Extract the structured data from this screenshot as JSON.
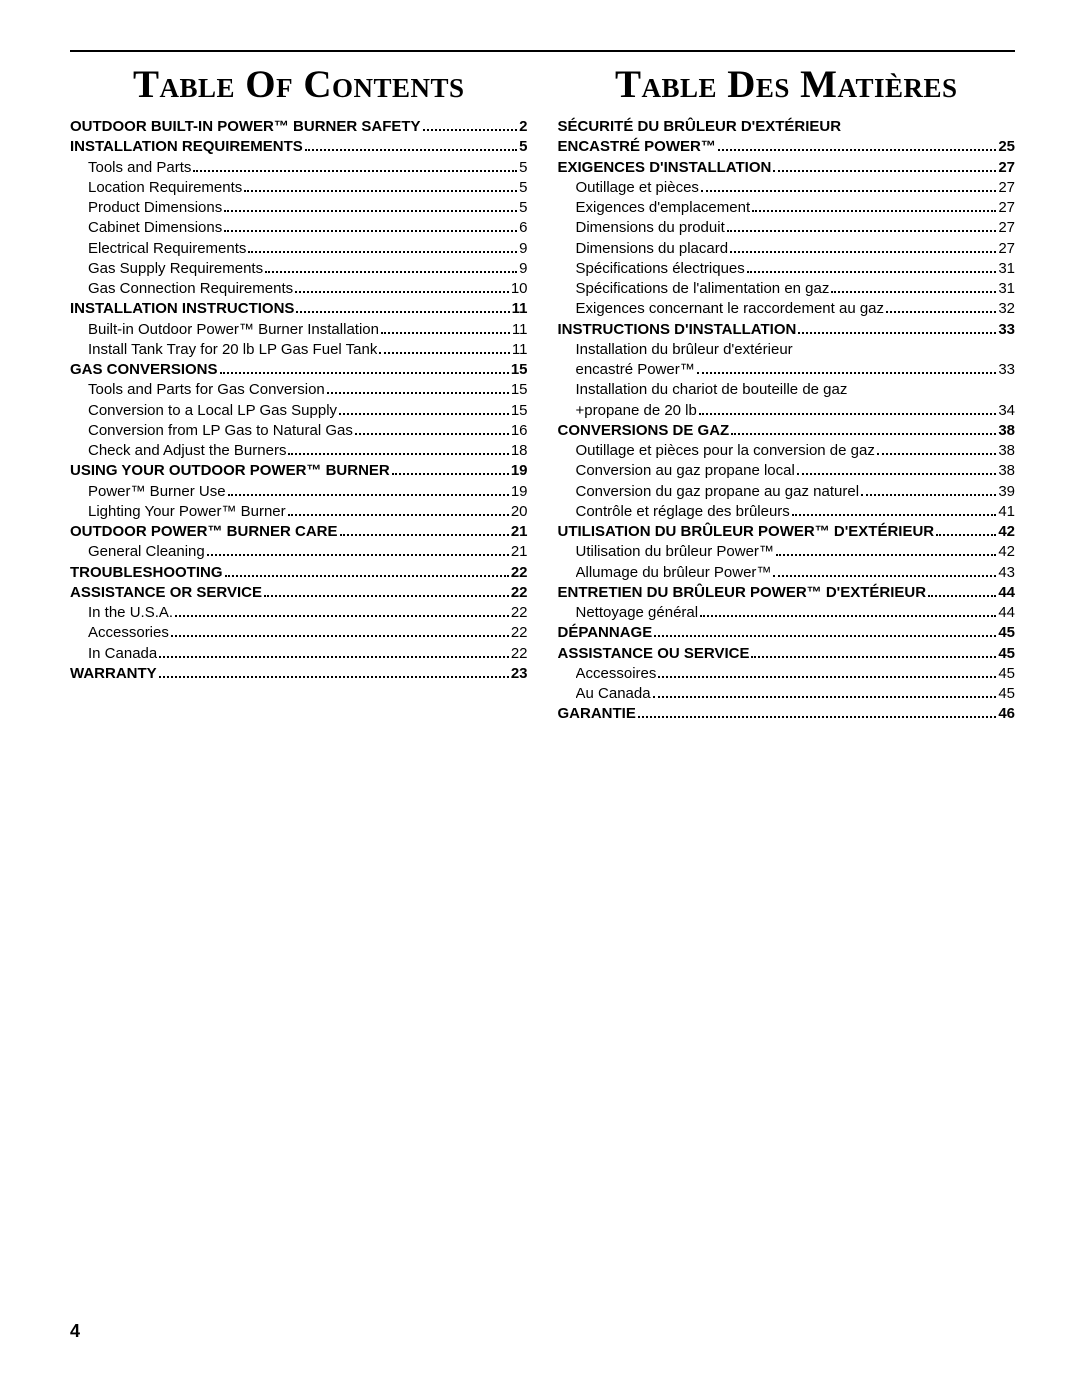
{
  "pageNumber": "4",
  "left": {
    "title": "Table Of Contents",
    "entries": [
      {
        "label": "OUTDOOR BUILT-IN POWER™ BURNER SAFETY",
        "page": "2",
        "level": "section"
      },
      {
        "label": "INSTALLATION REQUIREMENTS",
        "page": "5",
        "level": "section"
      },
      {
        "label": "Tools and Parts",
        "page": "5",
        "level": "sub"
      },
      {
        "label": "Location Requirements",
        "page": "5",
        "level": "sub"
      },
      {
        "label": "Product Dimensions",
        "page": "5",
        "level": "sub"
      },
      {
        "label": "Cabinet Dimensions",
        "page": "6",
        "level": "sub"
      },
      {
        "label": "Electrical Requirements",
        "page": "9",
        "level": "sub"
      },
      {
        "label": "Gas Supply Requirements",
        "page": "9",
        "level": "sub"
      },
      {
        "label": "Gas Connection Requirements",
        "page": "10",
        "level": "sub"
      },
      {
        "label": "INSTALLATION INSTRUCTIONS",
        "page": "11",
        "level": "section"
      },
      {
        "label": "Built-in Outdoor Power™ Burner Installation",
        "page": "11",
        "level": "sub"
      },
      {
        "label": "Install Tank Tray for 20 lb LP Gas Fuel Tank",
        "page": "11",
        "level": "sub"
      },
      {
        "label": "GAS CONVERSIONS",
        "page": "15",
        "level": "section"
      },
      {
        "label": "Tools and Parts for Gas Conversion",
        "page": "15",
        "level": "sub"
      },
      {
        "label": "Conversion to a Local LP Gas Supply",
        "page": "15",
        "level": "sub"
      },
      {
        "label": "Conversion from LP Gas to Natural Gas",
        "page": "16",
        "level": "sub"
      },
      {
        "label": "Check and Adjust the Burners",
        "page": "18",
        "level": "sub"
      },
      {
        "label": "USING YOUR OUTDOOR POWER™ BURNER",
        "page": "19",
        "level": "section"
      },
      {
        "label": "Power™ Burner Use",
        "page": "19",
        "level": "sub"
      },
      {
        "label": "Lighting Your Power™ Burner",
        "page": "20",
        "level": "sub"
      },
      {
        "label": "OUTDOOR POWER™ BURNER CARE",
        "page": "21",
        "level": "section"
      },
      {
        "label": "General Cleaning",
        "page": "21",
        "level": "sub"
      },
      {
        "label": "TROUBLESHOOTING",
        "page": "22",
        "level": "section"
      },
      {
        "label": "ASSISTANCE OR SERVICE",
        "page": "22",
        "level": "section"
      },
      {
        "label": "In the U.S.A.",
        "page": "22",
        "level": "sub"
      },
      {
        "label": "Accessories",
        "page": "22",
        "level": "sub"
      },
      {
        "label": "In Canada",
        "page": "22",
        "level": "sub"
      },
      {
        "label": "WARRANTY",
        "page": "23",
        "level": "section"
      }
    ]
  },
  "right": {
    "title": "Table Des Matières",
    "entries": [
      {
        "label": "SÉCURITÉ DU BRÛLEUR D'EXTÉRIEUR",
        "page": "",
        "level": "section",
        "noleader": true
      },
      {
        "label": "ENCASTRÉ POWER™",
        "page": "25",
        "level": "section"
      },
      {
        "label": "EXIGENCES D'INSTALLATION",
        "page": "27",
        "level": "section"
      },
      {
        "label": "Outillage et pièces",
        "page": "27",
        "level": "sub"
      },
      {
        "label": "Exigences d'emplacement",
        "page": "27",
        "level": "sub"
      },
      {
        "label": "Dimensions du produit",
        "page": "27",
        "level": "sub"
      },
      {
        "label": "Dimensions du placard",
        "page": "27",
        "level": "sub"
      },
      {
        "label": "Spécifications électriques",
        "page": "31",
        "level": "sub"
      },
      {
        "label": "Spécifications de l'alimentation en gaz",
        "page": "31",
        "level": "sub"
      },
      {
        "label": "Exigences concernant le raccordement au gaz",
        "page": "32",
        "level": "sub"
      },
      {
        "label": "INSTRUCTIONS D'INSTALLATION",
        "page": "33",
        "level": "section"
      },
      {
        "label": "Installation du brûleur d'extérieur",
        "page": "",
        "level": "sub",
        "noleader": true
      },
      {
        "label": "encastré Power™",
        "page": "33",
        "level": "sub"
      },
      {
        "label": "Installation du chariot de bouteille de gaz",
        "page": "",
        "level": "sub",
        "noleader": true
      },
      {
        "label": "+propane de 20 lb",
        "page": "34",
        "level": "sub"
      },
      {
        "label": "CONVERSIONS DE GAZ",
        "page": "38",
        "level": "section"
      },
      {
        "label": "Outillage et pièces pour la conversion de gaz",
        "page": "38",
        "level": "sub"
      },
      {
        "label": "Conversion au gaz propane local",
        "page": "38",
        "level": "sub"
      },
      {
        "label": "Conversion du gaz propane au gaz naturel",
        "page": "39",
        "level": "sub"
      },
      {
        "label": "Contrôle et réglage des brûleurs",
        "page": "41",
        "level": "sub"
      },
      {
        "label": "UTILISATION DU BRÛLEUR POWER™ D'EXTÉRIEUR",
        "page": "42",
        "level": "section"
      },
      {
        "label": "Utilisation du brûleur Power™",
        "page": "42",
        "level": "sub"
      },
      {
        "label": "Allumage du brûleur Power™",
        "page": "43",
        "level": "sub"
      },
      {
        "label": "ENTRETIEN DU BRÛLEUR POWER™ D'EXTÉRIEUR",
        "page": "44",
        "level": "section"
      },
      {
        "label": "Nettoyage général",
        "page": "44",
        "level": "sub"
      },
      {
        "label": "DÉPANNAGE",
        "page": "45",
        "level": "section"
      },
      {
        "label": "ASSISTANCE OU SERVICE",
        "page": "45",
        "level": "section"
      },
      {
        "label": "Accessoires",
        "page": "45",
        "level": "sub"
      },
      {
        "label": "Au Canada",
        "page": "45",
        "level": "sub"
      },
      {
        "label": "GARANTIE",
        "page": "46",
        "level": "section"
      }
    ]
  }
}
